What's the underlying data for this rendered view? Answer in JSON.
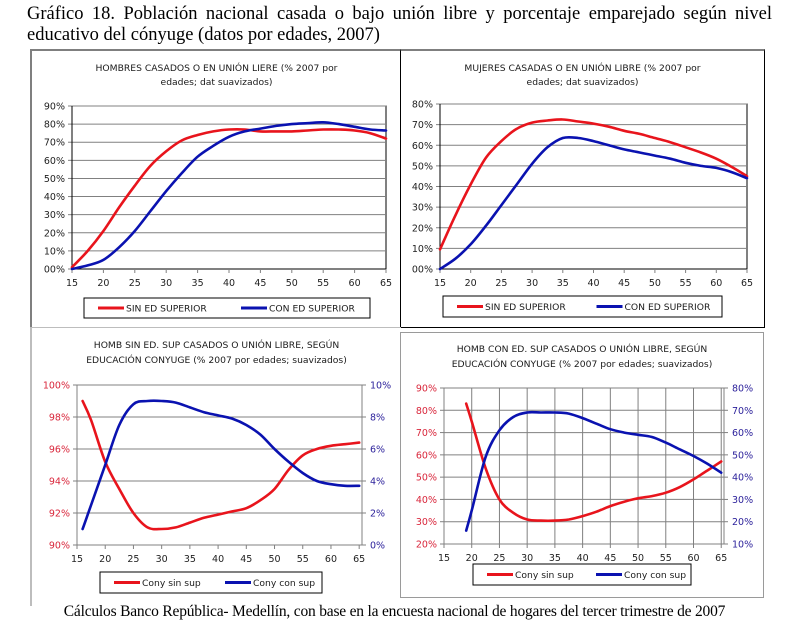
{
  "page": {
    "title": "Gráfico 18. Población nacional casada o bajo unión libre  y porcentaje emparejado según nivel educativo del cónyuge (datos por edades, 2007)",
    "source": "Cálculos Banco República- Medellín, con base en la encuesta nacional de hogares del tercer trimestre de 2007"
  },
  "colors": {
    "red": "#e8141c",
    "blue": "#0a12b0",
    "grid": "#808080"
  },
  "chart_data": [
    {
      "id": "hombres",
      "type": "line",
      "title": [
        "HOMBRES CASADOS O EN UNIÓN LIERE (% 2007 por",
        "edades; dat suavizados)"
      ],
      "xlabel": "",
      "ylabel": "",
      "x": [
        15,
        17.5,
        20,
        22.5,
        25,
        27.5,
        30,
        32.5,
        35,
        37.5,
        40,
        42.5,
        45,
        47.5,
        50,
        52.5,
        55,
        57.5,
        60,
        62.5,
        65
      ],
      "xticks": [
        "15",
        "20",
        "25",
        "30",
        "35",
        "40",
        "45",
        "50",
        "55",
        "60",
        "65"
      ],
      "xlim": [
        15,
        65
      ],
      "yticks": [
        "00%",
        "10%",
        "20%",
        "30%",
        "40%",
        "50%",
        "60%",
        "70%",
        "80%",
        "90%"
      ],
      "ylim": [
        0,
        90
      ],
      "grid": true,
      "legend": "bottom",
      "series": [
        {
          "name": "SIN ED SUPERIOR",
          "color": "red",
          "values": [
            1,
            10,
            21,
            34,
            46,
            57,
            65,
            71,
            74,
            76,
            77,
            77,
            76,
            76,
            76,
            76.5,
            77,
            77,
            76.5,
            75,
            72
          ]
        },
        {
          "name": "CON ED SUPERIOR",
          "color": "blue",
          "values": [
            0,
            2,
            5,
            12,
            21,
            32,
            43,
            53,
            62,
            68,
            73,
            76,
            77.5,
            79,
            80,
            80.5,
            81,
            80,
            78.5,
            77,
            76.5
          ]
        }
      ]
    },
    {
      "id": "mujeres",
      "type": "line",
      "title": [
        "MUJERES   CASADAS O EN UNIÓN LIBRE (% 2007 por",
        "edades; dat suavizados)"
      ],
      "xlabel": "",
      "ylabel": "",
      "x": [
        15,
        17.5,
        20,
        22.5,
        25,
        27.5,
        30,
        32.5,
        35,
        37.5,
        40,
        42.5,
        45,
        47.5,
        50,
        52.5,
        55,
        57.5,
        60,
        62.5,
        65
      ],
      "xticks": [
        "15",
        "20",
        "25",
        "30",
        "35",
        "40",
        "45",
        "50",
        "55",
        "60",
        "65"
      ],
      "xlim": [
        15,
        65
      ],
      "yticks": [
        "00%",
        "10%",
        "20%",
        "30%",
        "40%",
        "50%",
        "60%",
        "70%",
        "80%"
      ],
      "ylim": [
        0,
        80
      ],
      "grid": true,
      "legend": "bottom",
      "series": [
        {
          "name": "SIN ED SUPERIOR",
          "color": "red",
          "values": [
            9.5,
            26,
            41,
            54,
            62,
            68,
            71,
            72,
            72.5,
            71.5,
            70.5,
            69,
            67,
            65.5,
            63.5,
            61.5,
            59,
            56.5,
            53.5,
            49.5,
            45
          ]
        },
        {
          "name": "CON ED SUPERIOR",
          "color": "blue",
          "values": [
            0,
            5,
            12,
            21,
            31,
            41,
            51,
            59,
            63.5,
            63.5,
            62,
            60,
            58,
            56.5,
            55,
            53.5,
            51.5,
            50,
            49,
            47,
            44
          ]
        }
      ]
    },
    {
      "id": "homb-sin-ed-sup",
      "type": "line",
      "title": [
        "HOMB  SIN ED.  SUP CASADOS O UNIÓN LIBRE, SEGÚN",
        "EDUCACIÓN CONYUGE  (% 2007 por edades; suavizados)"
      ],
      "xlabel": "",
      "ylabel": "",
      "x": [
        16,
        17.5,
        20,
        22.5,
        25,
        27.5,
        30,
        32.5,
        35,
        37.5,
        40,
        42.5,
        45,
        47.5,
        50,
        52.5,
        55,
        57.5,
        60,
        62.5,
        65
      ],
      "xticks": [
        "15",
        "20",
        "25",
        "30",
        "35",
        "40",
        "45",
        "50",
        "55",
        "60",
        "65"
      ],
      "xlim": [
        15,
        65.5
      ],
      "yticks_left": [
        "90%",
        "92%",
        "94%",
        "96%",
        "98%",
        "100%"
      ],
      "ylim_left": [
        90,
        100
      ],
      "yticks_right": [
        "0%",
        "2%",
        "4%",
        "6%",
        "8%",
        "10%"
      ],
      "ylim_right": [
        0,
        10
      ],
      "grid": true,
      "legend": "bottom",
      "series": [
        {
          "name": "Cony sin sup",
          "color": "red",
          "axis": "left",
          "values": [
            99,
            97.8,
            95.2,
            93.5,
            92,
            91.1,
            91,
            91.1,
            91.4,
            91.7,
            91.9,
            92.1,
            92.3,
            92.8,
            93.5,
            94.7,
            95.6,
            96,
            96.2,
            96.3,
            96.4
          ]
        },
        {
          "name": "Cony con sup",
          "color": "blue",
          "axis": "right",
          "values": [
            1,
            2.5,
            5,
            7.5,
            8.8,
            9,
            9,
            8.9,
            8.6,
            8.3,
            8.1,
            7.9,
            7.5,
            6.9,
            6,
            5.2,
            4.5,
            4,
            3.8,
            3.7,
            3.7
          ]
        }
      ]
    },
    {
      "id": "homb-con-ed-sup",
      "type": "line",
      "title": [
        "HOMB  CON ED.  SUP CASADOS O UNIÓN LIBRE, SEGÚN",
        "EDUCACIÓN  CONYUGE  (% 2007 por edades; suavizados)"
      ],
      "xlabel": "",
      "ylabel": "",
      "x": [
        19,
        20,
        22.5,
        25,
        27.5,
        30,
        32.5,
        35,
        37.5,
        40,
        42.5,
        45,
        47.5,
        50,
        52.5,
        55,
        57.5,
        60,
        62.5,
        65
      ],
      "xticks": [
        "15",
        "20",
        "25",
        "30",
        "35",
        "40",
        "45",
        "50",
        "55",
        "60",
        "65"
      ],
      "xlim": [
        15,
        65.5
      ],
      "yticks_left": [
        "20%",
        "30%",
        "40%",
        "50%",
        "60%",
        "70%",
        "80%",
        "90%"
      ],
      "ylim_left": [
        20,
        90
      ],
      "yticks_right": [
        "10%",
        "20%",
        "30%",
        "40%",
        "50%",
        "60%",
        "70%",
        "80%"
      ],
      "ylim_right": [
        10,
        80
      ],
      "grid": true,
      "legend": "bottom",
      "series": [
        {
          "name": "Cony sin sup",
          "color": "red",
          "axis": "left",
          "values": [
            83,
            75,
            54,
            40,
            34,
            31,
            30.5,
            30.5,
            31,
            32.5,
            34.5,
            37,
            39,
            40.5,
            41.5,
            43,
            45.5,
            49,
            53,
            57
          ]
        },
        {
          "name": "Cony con sup",
          "color": "blue",
          "axis": "right",
          "values": [
            16,
            25,
            49,
            61,
            67,
            69,
            69,
            69,
            68.5,
            66.5,
            64,
            61.5,
            60,
            59,
            58,
            55.5,
            52.5,
            49.5,
            46,
            42
          ]
        }
      ]
    }
  ]
}
